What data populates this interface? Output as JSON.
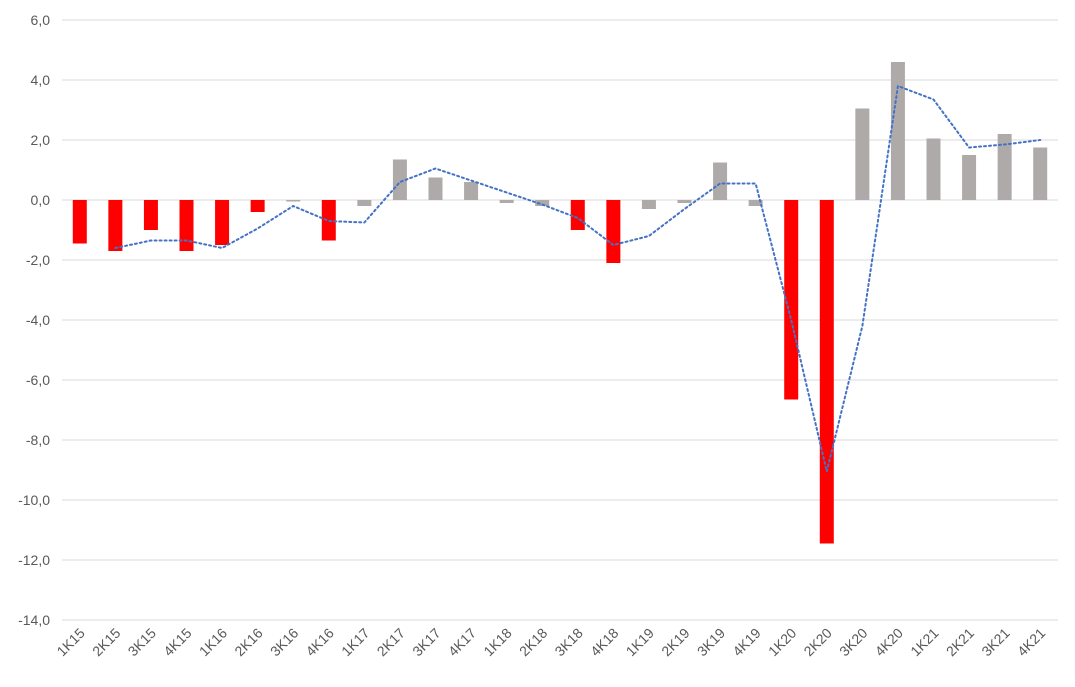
{
  "chart_data": {
    "type": "bar",
    "title": "",
    "xlabel": "",
    "ylabel": "",
    "ylim": [
      -14,
      6
    ],
    "y_ticks": [
      "6,0",
      "4,0",
      "2,0",
      "0,0",
      "-2,0",
      "-4,0",
      "-6,0",
      "-8,0",
      "-10,0",
      "-12,0",
      "-14,0"
    ],
    "y_tick_values": [
      6,
      4,
      2,
      0,
      -2,
      -4,
      -6,
      -8,
      -10,
      -12,
      -14
    ],
    "grid": true,
    "legend": "none",
    "categories": [
      "1K15",
      "2K15",
      "3K15",
      "4K15",
      "1K16",
      "2K16",
      "3K16",
      "4K16",
      "1K17",
      "2K17",
      "3K17",
      "4K17",
      "1K18",
      "2K18",
      "3K18",
      "4K18",
      "1K19",
      "2K19",
      "3K19",
      "4K19",
      "1K20",
      "2K20",
      "3K20",
      "4K20",
      "1K21",
      "2K21",
      "3K21",
      "4K21"
    ],
    "series": [
      {
        "kind": "bar",
        "values": [
          -1.45,
          -1.7,
          -1.0,
          -1.7,
          -1.5,
          -0.4,
          -0.05,
          -1.35,
          -0.2,
          1.35,
          0.75,
          0.6,
          -0.1,
          -0.2,
          -1.0,
          -2.1,
          -0.3,
          -0.1,
          1.25,
          -0.2,
          -6.65,
          -11.45,
          3.05,
          4.6,
          2.05,
          1.5,
          2.2,
          1.75
        ],
        "highlight": [
          true,
          true,
          true,
          true,
          true,
          true,
          false,
          true,
          false,
          false,
          false,
          false,
          false,
          false,
          true,
          true,
          false,
          false,
          false,
          false,
          true,
          true,
          false,
          false,
          false,
          false,
          false,
          false
        ]
      },
      {
        "kind": "line",
        "style": "dotted",
        "values": [
          null,
          -1.6,
          -1.35,
          -1.35,
          -1.6,
          -0.95,
          -0.2,
          -0.7,
          -0.75,
          0.6,
          1.05,
          0.65,
          0.25,
          -0.15,
          -0.6,
          -1.5,
          -1.2,
          -0.3,
          0.55,
          0.55,
          -4.0,
          -9.05,
          -4.2,
          3.8,
          3.35,
          1.75,
          1.85,
          2.0
        ]
      }
    ],
    "colors": {
      "highlight_bar": "#ff0000",
      "normal_bar": "#aeaaaa",
      "line": "#4472c4",
      "grid": "#d9d9d9",
      "text": "#595959"
    }
  }
}
